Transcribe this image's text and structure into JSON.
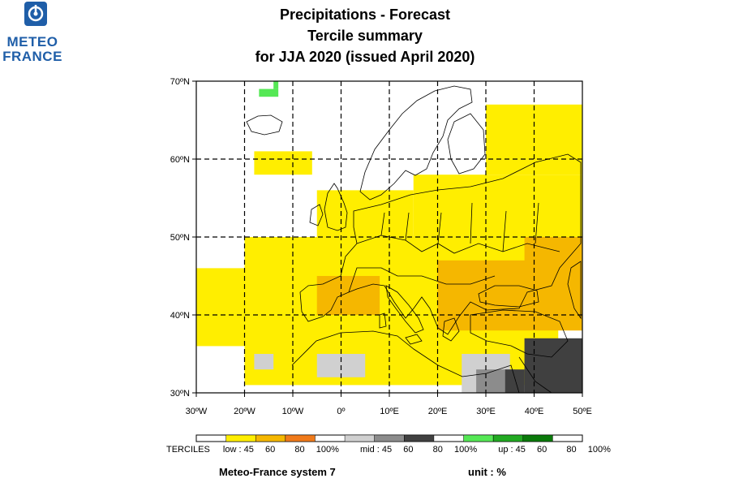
{
  "logo": {
    "line1": "METEO",
    "line2": "FRANCE",
    "icon": "meteo-france-logo-icon"
  },
  "title": {
    "line1": "Precipitations   -   Forecast",
    "line2": "Tercile summary",
    "line3": "for JJA 2020   (issued April 2020)"
  },
  "map": {
    "lon_range": [
      -30,
      50
    ],
    "lat_range": [
      30,
      70
    ],
    "lat_ticks": [
      {
        "value": 70,
        "label": "70ºN"
      },
      {
        "value": 60,
        "label": "60ºN"
      },
      {
        "value": 50,
        "label": "50ºN"
      },
      {
        "value": 40,
        "label": "40ºN"
      },
      {
        "value": 30,
        "label": "30ºN"
      }
    ],
    "lon_ticks": [
      {
        "value": -30,
        "label": "30ºW"
      },
      {
        "value": -20,
        "label": "20ºW"
      },
      {
        "value": -10,
        "label": "10ºW"
      },
      {
        "value": 0,
        "label": "0º"
      },
      {
        "value": 10,
        "label": "10ºE"
      },
      {
        "value": 20,
        "label": "20ºE"
      },
      {
        "value": 30,
        "label": "30ºE"
      },
      {
        "value": 40,
        "label": "40ºE"
      },
      {
        "value": 50,
        "label": "50ºE"
      }
    ],
    "grid": true,
    "regions": [
      {
        "category": "low-45",
        "lon": [
          -30,
          -16
        ],
        "lat": [
          36,
          46
        ]
      },
      {
        "category": "low-45",
        "lon": [
          -20,
          45
        ],
        "lat": [
          31,
          50
        ]
      },
      {
        "category": "low-45",
        "lon": [
          -18,
          -6
        ],
        "lat": [
          58,
          61
        ]
      },
      {
        "category": "low-45",
        "lon": [
          15,
          50
        ],
        "lat": [
          50,
          58
        ]
      },
      {
        "category": "low-45",
        "lon": [
          30,
          50
        ],
        "lat": [
          58,
          67
        ]
      },
      {
        "category": "low-45",
        "lon": [
          -5,
          15
        ],
        "lat": [
          48,
          56
        ]
      },
      {
        "category": "low-60",
        "lon": [
          20,
          50
        ],
        "lat": [
          38,
          47
        ]
      },
      {
        "category": "low-60",
        "lon": [
          -5,
          8
        ],
        "lat": [
          40,
          45
        ]
      },
      {
        "category": "low-60",
        "lon": [
          38,
          50
        ],
        "lat": [
          44,
          50
        ]
      },
      {
        "category": "mid-45",
        "lon": [
          -5,
          5
        ],
        "lat": [
          32,
          35
        ]
      },
      {
        "category": "mid-45",
        "lon": [
          -18,
          -14
        ],
        "lat": [
          33,
          35
        ]
      },
      {
        "category": "mid-45",
        "lon": [
          25,
          35
        ],
        "lat": [
          30,
          35
        ]
      },
      {
        "category": "mid-60",
        "lon": [
          28,
          36
        ],
        "lat": [
          30,
          33
        ]
      },
      {
        "category": "mid-80",
        "lon": [
          38,
          50
        ],
        "lat": [
          30,
          37
        ]
      },
      {
        "category": "mid-80",
        "lon": [
          34,
          38
        ],
        "lat": [
          30,
          33
        ]
      },
      {
        "category": "up-45",
        "lon": [
          -17,
          -13
        ],
        "lat": [
          68,
          69
        ]
      },
      {
        "category": "up-45",
        "lon": [
          -14,
          -13
        ],
        "lat": [
          69,
          70
        ]
      }
    ],
    "country_lines": "approximate European, North African and Middle-East coastlines and borders"
  },
  "legend": {
    "title": "TERCILES",
    "groups": [
      {
        "name": "low",
        "labels": [
          "low : 45",
          "60",
          "80",
          "100%"
        ],
        "colors": [
          "#ffee00",
          "#f5b700",
          "#f07a1a"
        ]
      },
      {
        "name": "mid",
        "labels": [
          "mid : 45",
          "60",
          "80",
          "100%"
        ],
        "colors": [
          "#d0d0d0",
          "#8c8c8c",
          "#404040"
        ]
      },
      {
        "name": "up",
        "labels": [
          "up : 45",
          "60",
          "80",
          "100%"
        ],
        "colors": [
          "#55e855",
          "#22aa22",
          "#0a7a0a"
        ]
      }
    ],
    "empty_color": "#ffffff"
  },
  "footer": {
    "system": "Meteo-France system 7",
    "unit": "unit : %"
  },
  "colors": {
    "brand": "#1f5ea8",
    "low-45": "#ffee00",
    "low-60": "#f5b700",
    "low-80": "#f07a1a",
    "mid-45": "#d0d0d0",
    "mid-60": "#8c8c8c",
    "mid-80": "#404040",
    "up-45": "#55e855",
    "up-60": "#22aa22",
    "up-80": "#0a7a0a"
  }
}
